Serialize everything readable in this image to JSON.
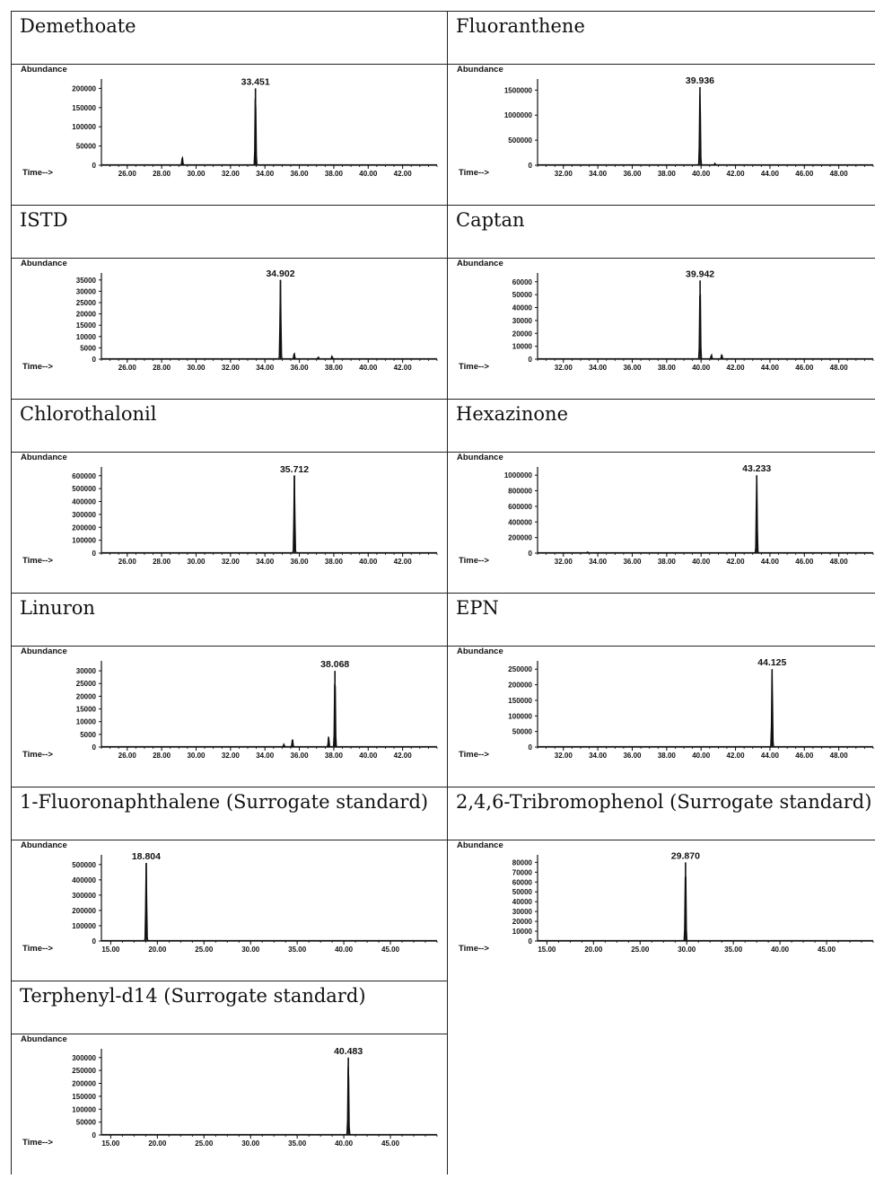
{
  "chart_data": [
    {
      "type": "line",
      "title": "Demethoate",
      "ylabel": "Abundance",
      "xlabel": "Time-->",
      "xlim": [
        24.5,
        44.0
      ],
      "ylim": [
        0,
        215000
      ],
      "xticks": [
        26,
        28,
        30,
        32,
        34,
        36,
        38,
        40,
        42
      ],
      "xtick_labels": [
        "26.00",
        "28.00",
        "30.00",
        "32.00",
        "34.00",
        "36.00",
        "38.00",
        "40.00",
        "42.00"
      ],
      "yticks": [
        0,
        50000,
        100000,
        150000,
        200000
      ],
      "ytick_labels": [
        "0",
        "50000",
        "100000",
        "150000",
        "200000"
      ],
      "peak_label": "33.451",
      "peaks": [
        [
          29.2,
          20000
        ],
        [
          33.451,
          200000
        ]
      ]
    },
    {
      "type": "line",
      "title": "Fluoranthene",
      "ylabel": "Abundance",
      "xlabel": "Time-->",
      "xlim": [
        30.5,
        50.0
      ],
      "ylim": [
        0,
        1650000
      ],
      "xticks": [
        32,
        34,
        36,
        38,
        40,
        42,
        44,
        46,
        48
      ],
      "xtick_labels": [
        "32.00",
        "34.00",
        "36.00",
        "38.00",
        "40.00",
        "42.00",
        "44.00",
        "46.00",
        "48.00"
      ],
      "yticks": [
        0,
        500000,
        1000000,
        1500000
      ],
      "ytick_labels": [
        "0",
        "500000",
        "1000000",
        "1500000"
      ],
      "peak_label": "39.936",
      "peaks": [
        [
          39.936,
          1560000
        ],
        [
          40.8,
          30000
        ]
      ]
    },
    {
      "type": "line",
      "title": "ISTD",
      "ylabel": "Abundance",
      "xlabel": "Time-->",
      "xlim": [
        24.5,
        44.0
      ],
      "ylim": [
        0,
        36500
      ],
      "xticks": [
        26,
        28,
        30,
        32,
        34,
        36,
        38,
        40,
        42
      ],
      "xtick_labels": [
        "26.00",
        "28.00",
        "30.00",
        "32.00",
        "34.00",
        "36.00",
        "38.00",
        "40.00",
        "42.00"
      ],
      "yticks": [
        0,
        5000,
        10000,
        15000,
        20000,
        25000,
        30000,
        35000
      ],
      "ytick_labels": [
        "0",
        "5000",
        "10000",
        "15000",
        "20000",
        "25000",
        "30000",
        "35000"
      ],
      "peak_label": "34.902",
      "peaks": [
        [
          34.902,
          35000
        ],
        [
          35.7,
          2500
        ],
        [
          37.1,
          800
        ],
        [
          37.9,
          1200
        ]
      ]
    },
    {
      "type": "line",
      "title": "Captan",
      "ylabel": "Abundance",
      "xlabel": "Time-->",
      "xlim": [
        30.5,
        50.0
      ],
      "ylim": [
        0,
        64000
      ],
      "xticks": [
        32,
        34,
        36,
        38,
        40,
        42,
        44,
        46,
        48
      ],
      "xtick_labels": [
        "32.00",
        "34.00",
        "36.00",
        "38.00",
        "40.00",
        "42.00",
        "44.00",
        "46.00",
        "48.00"
      ],
      "yticks": [
        0,
        10000,
        20000,
        30000,
        40000,
        50000,
        60000
      ],
      "ytick_labels": [
        "0",
        "10000",
        "20000",
        "30000",
        "40000",
        "50000",
        "60000"
      ],
      "peak_label": "39.942",
      "peaks": [
        [
          39.942,
          61000
        ],
        [
          40.6,
          3000
        ],
        [
          41.2,
          3500
        ]
      ]
    },
    {
      "type": "line",
      "title": "Chlorothalonil",
      "ylabel": "Abundance",
      "xlabel": "Time-->",
      "xlim": [
        24.5,
        44.0
      ],
      "ylim": [
        0,
        640000
      ],
      "xticks": [
        26,
        28,
        30,
        32,
        34,
        36,
        38,
        40,
        42
      ],
      "xtick_labels": [
        "26.00",
        "28.00",
        "30.00",
        "32.00",
        "34.00",
        "36.00",
        "38.00",
        "40.00",
        "42.00"
      ],
      "yticks": [
        0,
        100000,
        200000,
        300000,
        400000,
        500000,
        600000
      ],
      "ytick_labels": [
        "0",
        "100000",
        "200000",
        "300000",
        "400000",
        "500000",
        "600000"
      ],
      "peak_label": "35.712",
      "peaks": [
        [
          35.712,
          600000
        ]
      ]
    },
    {
      "type": "line",
      "title": "Hexazinone",
      "ylabel": "Abundance",
      "xlabel": "Time-->",
      "xlim": [
        30.5,
        50.0
      ],
      "ylim": [
        0,
        1060000
      ],
      "xticks": [
        32,
        34,
        36,
        38,
        40,
        42,
        44,
        46,
        48
      ],
      "xtick_labels": [
        "32.00",
        "34.00",
        "36.00",
        "38.00",
        "40.00",
        "42.00",
        "44.00",
        "46.00",
        "48.00"
      ],
      "yticks": [
        0,
        200000,
        400000,
        600000,
        800000,
        1000000
      ],
      "ytick_labels": [
        "0",
        "200000",
        "400000",
        "600000",
        "800000",
        "1000000"
      ],
      "peak_label": "43.233",
      "peaks": [
        [
          43.233,
          1000000
        ],
        [
          33.4,
          10000
        ]
      ]
    },
    {
      "type": "line",
      "title": "Linuron",
      "ylabel": "Abundance",
      "xlabel": "Time-->",
      "xlim": [
        24.5,
        44.0
      ],
      "ylim": [
        0,
        32500
      ],
      "xticks": [
        26,
        28,
        30,
        32,
        34,
        36,
        38,
        40,
        42
      ],
      "xtick_labels": [
        "26.00",
        "28.00",
        "30.00",
        "32.00",
        "34.00",
        "36.00",
        "38.00",
        "40.00",
        "42.00"
      ],
      "yticks": [
        0,
        5000,
        10000,
        15000,
        20000,
        25000,
        30000
      ],
      "ytick_labels": [
        "0",
        "5000",
        "10000",
        "15000",
        "20000",
        "25000",
        "30000"
      ],
      "peak_label": "38.068",
      "peaks": [
        [
          38.068,
          30000
        ],
        [
          37.7,
          4000
        ],
        [
          35.6,
          3000
        ],
        [
          35.1,
          1000
        ]
      ]
    },
    {
      "type": "line",
      "title": "EPN",
      "ylabel": "Abundance",
      "xlabel": "Time-->",
      "xlim": [
        30.5,
        50.0
      ],
      "ylim": [
        0,
        265000
      ],
      "xticks": [
        32,
        34,
        36,
        38,
        40,
        42,
        44,
        46,
        48
      ],
      "xtick_labels": [
        "32.00",
        "34.00",
        "36.00",
        "38.00",
        "40.00",
        "42.00",
        "44.00",
        "46.00",
        "48.00"
      ],
      "yticks": [
        0,
        50000,
        100000,
        150000,
        200000,
        250000
      ],
      "ytick_labels": [
        "0",
        "50000",
        "100000",
        "150000",
        "200000",
        "250000"
      ],
      "peak_label": "44.125",
      "peaks": [
        [
          44.125,
          250000
        ]
      ]
    },
    {
      "type": "line",
      "title": "1-Fluoronaphthalene (Surrogate standard)",
      "ylabel": "Abundance",
      "xlabel": "Time-->",
      "xlim": [
        14.0,
        50.0
      ],
      "ylim": [
        0,
        540000
      ],
      "xticks": [
        15,
        20,
        25,
        30,
        35,
        40,
        45
      ],
      "xtick_labels": [
        "15.00",
        "20.00",
        "25.00",
        "30.00",
        "35.00",
        "40.00",
        "45.00"
      ],
      "yticks": [
        0,
        100000,
        200000,
        300000,
        400000,
        500000
      ],
      "ytick_labels": [
        "0",
        "100000",
        "200000",
        "300000",
        "400000",
        "500000"
      ],
      "peak_label": "18.804",
      "peaks": [
        [
          18.804,
          510000
        ]
      ]
    },
    {
      "type": "line",
      "title": "2,4,6-Tribromophenol (Surrogate standard)",
      "ylabel": "Abundance",
      "xlabel": "Time-->",
      "xlim": [
        14.0,
        50.0
      ],
      "ylim": [
        0,
        84000
      ],
      "xticks": [
        15,
        20,
        25,
        30,
        35,
        40,
        45
      ],
      "xtick_labels": [
        "15.00",
        "20.00",
        "25.00",
        "30.00",
        "35.00",
        "40.00",
        "45.00"
      ],
      "yticks": [
        0,
        10000,
        20000,
        30000,
        40000,
        50000,
        60000,
        70000,
        80000
      ],
      "ytick_labels": [
        "0",
        "10000",
        "20000",
        "30000",
        "40000",
        "50000",
        "60000",
        "70000",
        "80000"
      ],
      "peak_label": "29.870",
      "peaks": [
        [
          29.87,
          80000
        ]
      ]
    },
    {
      "type": "line",
      "title": "Terphenyl-d14 (Surrogate standard)",
      "ylabel": "Abundance",
      "xlabel": "Time-->",
      "xlim": [
        14.0,
        50.0
      ],
      "ylim": [
        0,
        320000
      ],
      "xticks": [
        15,
        20,
        25,
        30,
        35,
        40,
        45
      ],
      "xtick_labels": [
        "15.00",
        "20.00",
        "25.00",
        "30.00",
        "35.00",
        "40.00",
        "45.00"
      ],
      "yticks": [
        0,
        50000,
        100000,
        150000,
        200000,
        250000,
        300000
      ],
      "ytick_labels": [
        "0",
        "50000",
        "100000",
        "150000",
        "200000",
        "250000",
        "300000"
      ],
      "peak_label": "40.483",
      "peaks": [
        [
          40.483,
          300000
        ]
      ]
    }
  ]
}
